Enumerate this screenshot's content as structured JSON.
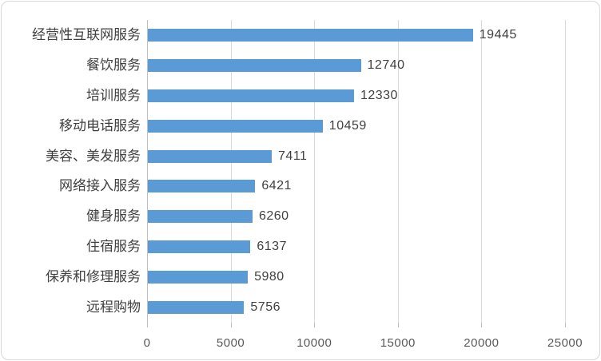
{
  "chart_data": {
    "type": "bar",
    "orientation": "horizontal",
    "title": "",
    "xlabel": "",
    "ylabel": "",
    "categories": [
      "经营性互联网服务",
      "餐饮服务",
      "培训服务",
      "移动电话服务",
      "美容、美发服务",
      "网络接入服务",
      "健身服务",
      "住宿服务",
      "保养和修理服务",
      "远程购物"
    ],
    "values": [
      19445,
      12740,
      12330,
      10459,
      7411,
      6421,
      6260,
      6137,
      5980,
      5756
    ],
    "data_labels": [
      "19445",
      "12740",
      "12330",
      "10459",
      "7411",
      "6421",
      "6260",
      "6137",
      "5980",
      "5756"
    ],
    "xlim": [
      0,
      25000
    ],
    "x_ticks": [
      0,
      5000,
      10000,
      15000,
      20000,
      25000
    ],
    "x_tick_labels": [
      "0",
      "5000",
      "10000",
      "15000",
      "20000",
      "25000"
    ],
    "grid": "vertical-gridlines-on",
    "legend": "none"
  },
  "colors": {
    "bar": "#5b9bd5",
    "gridline": "#d9d9d9",
    "axis_line": "#bfbfbf",
    "tick_mark": "#bfbfbf",
    "category_text": "#404040",
    "value_text": "#404040",
    "tick_text": "#595959",
    "chart_border": "#d9d9d9",
    "background": "#ffffff"
  }
}
